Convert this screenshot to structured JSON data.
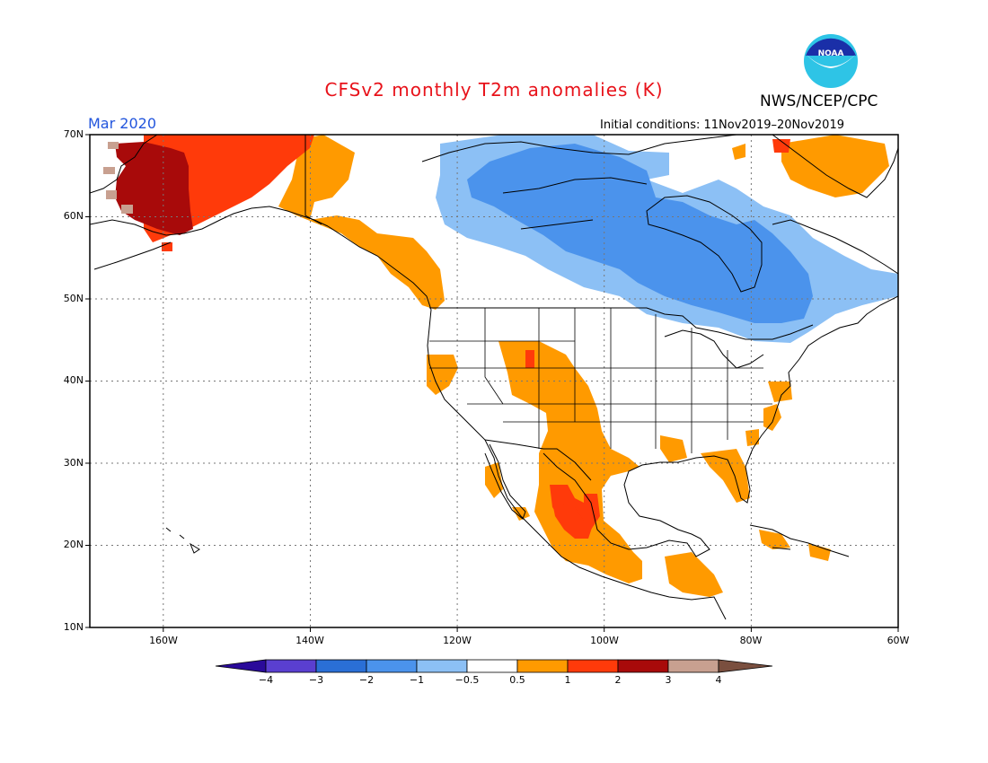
{
  "header": {
    "title": "CFSv2 monthly T2m anomalies (K)",
    "agency": "NWS/NCEP/CPC",
    "logo_text": "NOAA",
    "month": "Mar 2020",
    "initial_conditions": "Initial conditions: 11Nov2019–20Nov2019"
  },
  "map": {
    "lat_labels": [
      "70N",
      "60N",
      "50N",
      "40N",
      "30N",
      "20N",
      "10N"
    ],
    "lon_labels": [
      "160W",
      "140W",
      "120W",
      "100W",
      "80W",
      "60W"
    ],
    "lat_range": [
      10,
      70
    ],
    "lon_range": [
      -170,
      -60
    ]
  },
  "colorbar": {
    "tick_labels": [
      "−4",
      "−3",
      "−2",
      "−1",
      "−0.5",
      "0.5",
      "1",
      "2",
      "3",
      "4"
    ],
    "colors": [
      "#2a0a9a",
      "#5a3fd0",
      "#2a6fd6",
      "#4b93ec",
      "#8cc0f5",
      "#ffffff",
      "#ff9a00",
      "#ff3a0a",
      "#a80a0a",
      "#c8a090",
      "#7a4f3f"
    ]
  },
  "anomaly_regions": [
    {
      "name": "alaska-west",
      "level": "3"
    },
    {
      "name": "alaska-east",
      "level": "2"
    },
    {
      "name": "canada-north",
      "level": "-1"
    },
    {
      "name": "canada-central",
      "level": "-2"
    },
    {
      "name": "rockies",
      "level": "1"
    },
    {
      "name": "mexico",
      "level": "1"
    },
    {
      "name": "mexico-core",
      "level": "2"
    },
    {
      "name": "greenland-south",
      "level": "1"
    }
  ]
}
